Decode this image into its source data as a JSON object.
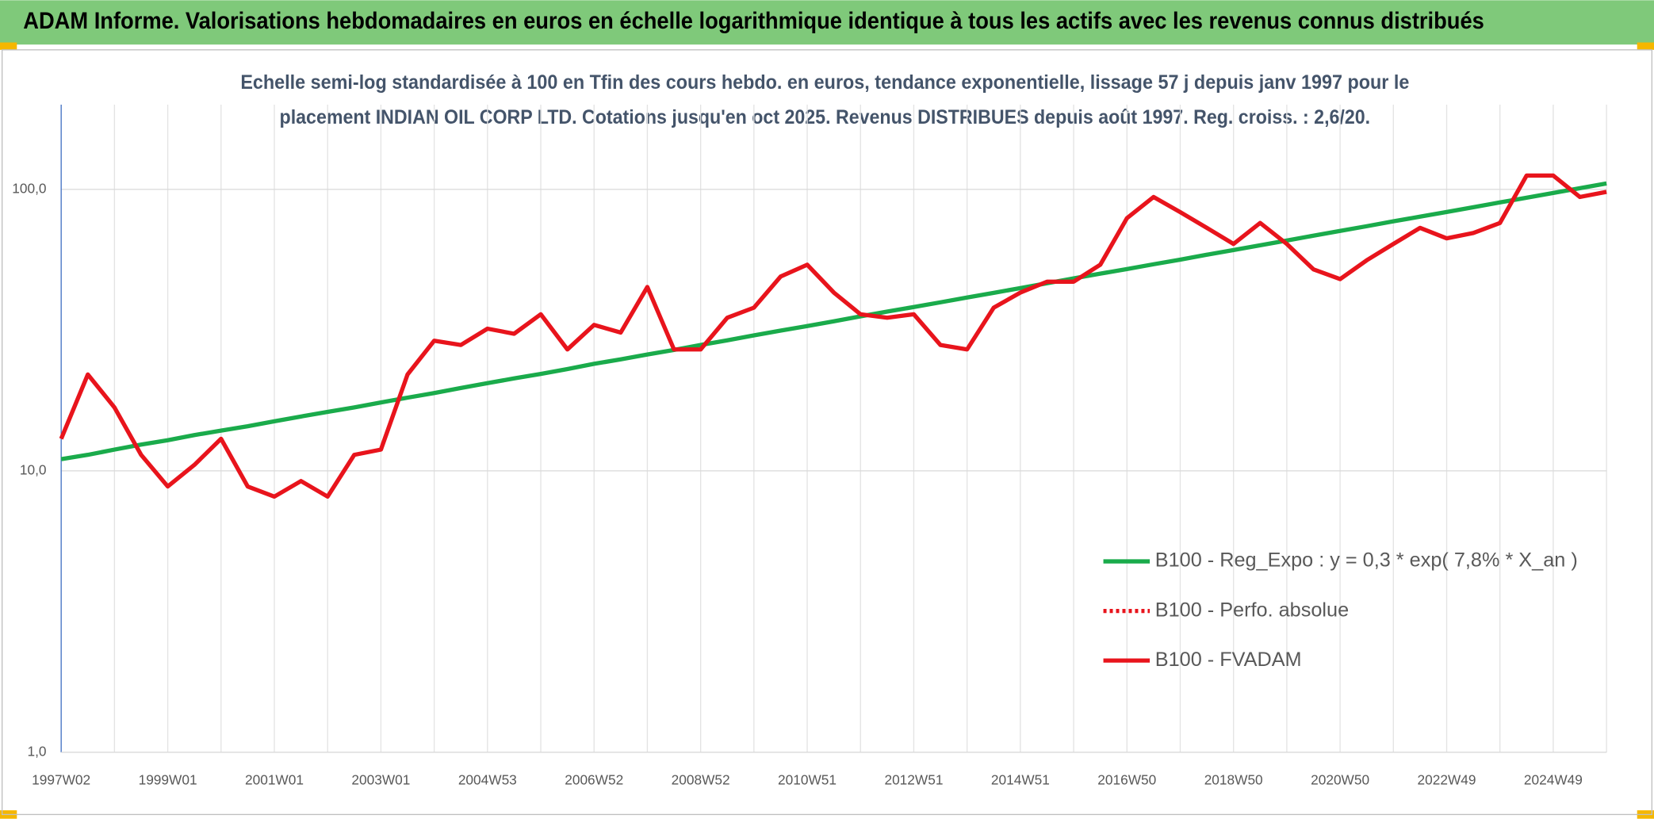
{
  "chart_data": {
    "type": "line",
    "title": "ADAM Informe. Valorisations hebdomadaires en euros en échelle logarithmique identique à tous les actifs avec les revenus connus distribués",
    "subtitle": [
      "Echelle semi-log standardisée à 100 en Tfin des cours hebdo. en euros, tendance exponentielle, lissage 57 j depuis janv 1997 pour le",
      "placement INDIAN OIL CORP LTD. Cotations jusqu'en oct 2025. Revenus DISTRIBUES depuis août 1997. Reg. croiss. : 2,6/20."
    ],
    "log_scale": true,
    "grid": true,
    "legend_position": "right",
    "ylim": [
      1,
      200
    ],
    "yticks": [
      {
        "value": 1,
        "label": "1,0"
      },
      {
        "value": 10,
        "label": "10,0"
      },
      {
        "value": 100,
        "label": "100,0"
      }
    ],
    "categories": [
      "1997W02",
      null,
      null,
      null,
      "1999W01",
      null,
      null,
      null,
      "2001W01",
      null,
      null,
      null,
      "2003W01",
      null,
      null,
      null,
      "2004W53",
      null,
      null,
      null,
      "2006W52",
      null,
      null,
      null,
      "2008W52",
      null,
      null,
      null,
      "2010W51",
      null,
      null,
      null,
      "2012W51",
      null,
      null,
      null,
      "2014W51",
      null,
      null,
      null,
      "2016W50",
      null,
      null,
      null,
      "2018W50",
      null,
      null,
      null,
      "2020W50",
      null,
      null,
      null,
      "2022W49",
      null,
      null,
      null,
      "2024W49",
      null,
      null
    ],
    "series": [
      {
        "name": "B100 - Reg_Expo : y = 0,3 * exp( 7,8% *  X_an )",
        "color": "#1aab4b",
        "dash": "solid",
        "values": [
          11.0,
          11.4,
          11.9,
          12.4,
          12.85,
          13.4,
          13.9,
          14.4,
          15.0,
          15.6,
          16.2,
          16.8,
          17.5,
          18.2,
          18.9,
          19.7,
          20.5,
          21.3,
          22.1,
          23.0,
          24.0,
          24.9,
          25.9,
          26.9,
          28.0,
          29.1,
          30.3,
          31.5,
          32.7,
          34.0,
          35.4,
          36.8,
          38.2,
          39.7,
          41.3,
          42.9,
          44.6,
          46.4,
          48.3,
          50.2,
          52.1,
          54.2,
          56.3,
          58.6,
          60.9,
          63.3,
          65.8,
          68.5,
          71.2,
          74.0,
          77.0,
          80.0,
          83.1,
          86.4,
          89.9,
          93.4,
          97.1,
          101,
          105
        ]
      },
      {
        "name": "B100 - Perfo. absolue",
        "color": "#e8141c",
        "dash": "dotted"
      },
      {
        "name": "B100 - FVADAM",
        "color": "#e8141c",
        "dash": "solid",
        "values": [
          13,
          22,
          16.8,
          11.4,
          8.8,
          10.5,
          13,
          8.8,
          8.1,
          9.2,
          8.1,
          11.4,
          11.9,
          22,
          29,
          28,
          32,
          30.7,
          36,
          27,
          33,
          31,
          45,
          27,
          27,
          35,
          38,
          49,
          54,
          43,
          36,
          35,
          36,
          28,
          27,
          38,
          43,
          47,
          47,
          54,
          79,
          94,
          83,
          73,
          64,
          76,
          64,
          52,
          48,
          56,
          64,
          73,
          67,
          70,
          76,
          112,
          112,
          94,
          98
        ]
      }
    ]
  }
}
